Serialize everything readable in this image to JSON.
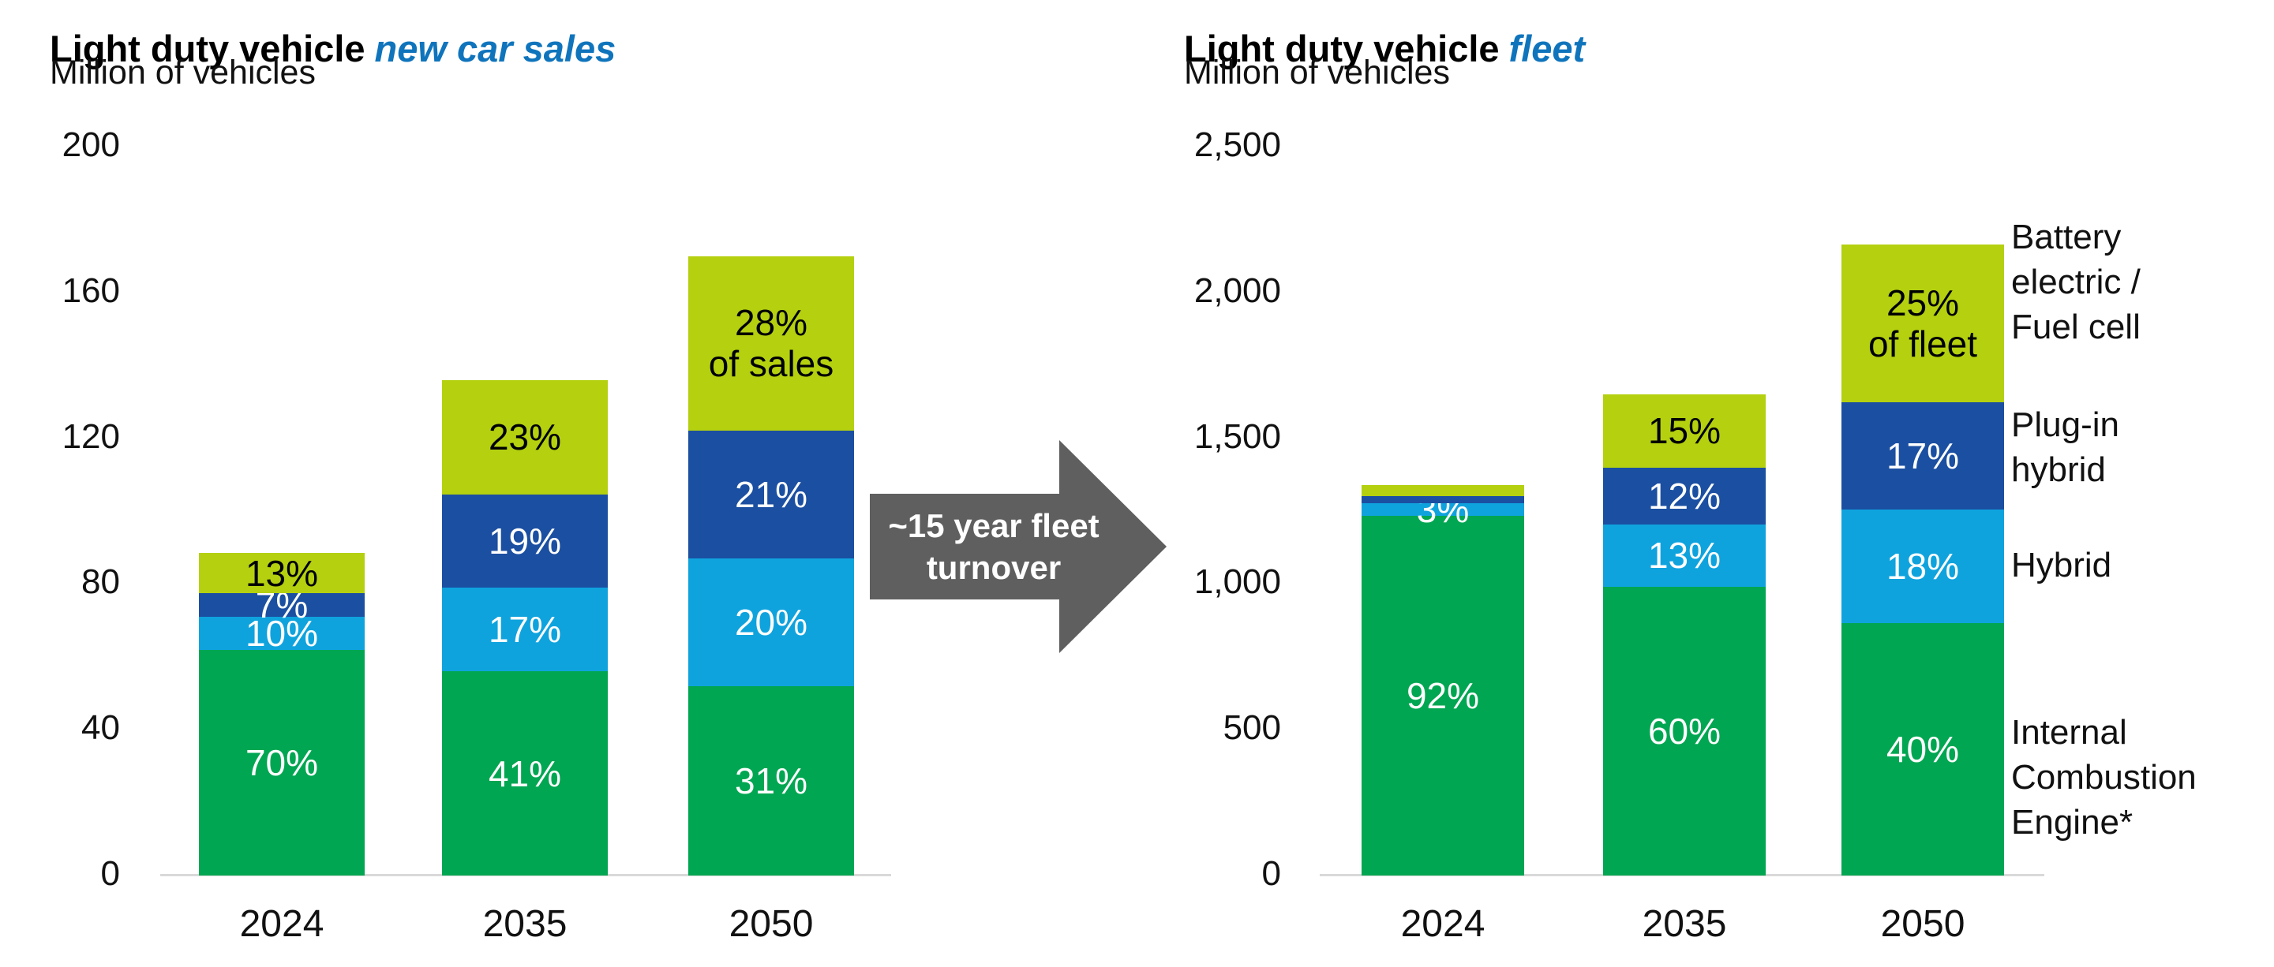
{
  "colors": {
    "ice_green": "#00a651",
    "hybrid_light_blue": "#0fa3de",
    "phev_dark_blue": "#1b4fa1",
    "bev_lime": "#b4d00f",
    "accent_blue": "#0f74bc",
    "arrow_gray": "#5f5f5f",
    "axis_line_gray": "#d9d9d9"
  },
  "arrow": {
    "label": "~15 year fleet\nturnover"
  },
  "legend": {
    "items": [
      {
        "key": "bev",
        "label": "Battery\nelectric /\nFuel cell"
      },
      {
        "key": "phev",
        "label": "Plug-in\nhybrid"
      },
      {
        "key": "hybrid",
        "label": "Hybrid"
      },
      {
        "key": "ice",
        "label": "Internal\nCombustion\nEngine*"
      }
    ]
  },
  "chart_data": [
    {
      "type": "bar",
      "stacked": true,
      "title_main": "Light duty vehicle",
      "title_accent": "new car sales",
      "subtitle": "Million of vehicles",
      "categories": [
        "2024",
        "2035",
        "2050"
      ],
      "ylim": [
        0,
        200
      ],
      "yticks": {
        "values": [
          0,
          40,
          80,
          120,
          160,
          200
        ],
        "labels": [
          "0",
          "40",
          "80",
          "120",
          "160",
          "200"
        ]
      },
      "grid": false,
      "legend_position": "none",
      "totals_estimated": [
        88,
        136,
        170
      ],
      "series": [
        {
          "key": "ice",
          "name": "Internal Combustion Engine*",
          "color": "#00a651",
          "label_color": "#ffffff",
          "values": [
            62,
            56,
            52
          ],
          "labels": [
            "70%",
            "41%",
            "31%"
          ]
        },
        {
          "key": "hybrid",
          "name": "Hybrid",
          "color": "#0fa3de",
          "label_color": "#ffffff",
          "values": [
            9,
            23,
            35
          ],
          "labels": [
            "10%",
            "17%",
            "20%"
          ]
        },
        {
          "key": "phev",
          "name": "Plug-in hybrid",
          "color": "#1b4fa1",
          "label_color": "#ffffff",
          "values": [
            6.5,
            25.5,
            35
          ],
          "labels": [
            "7%",
            "19%",
            "21%"
          ]
        },
        {
          "key": "bev",
          "name": "Battery electric / Fuel cell",
          "color": "#b4d00f",
          "label_color": "#000000",
          "values": [
            11,
            31.5,
            48
          ],
          "labels": [
            "13%",
            "23%",
            "28%\nof sales"
          ]
        }
      ]
    },
    {
      "type": "bar",
      "stacked": true,
      "title_main": "Light duty vehicle",
      "title_accent": "fleet",
      "subtitle": "Million of vehicles",
      "categories": [
        "2024",
        "2035",
        "2050"
      ],
      "ylim": [
        0,
        2500
      ],
      "yticks": {
        "values": [
          0,
          500,
          1000,
          1500,
          2000,
          2500
        ],
        "labels": [
          "0",
          "500",
          "1,000",
          "1,500",
          "2,000",
          "2,500"
        ]
      },
      "grid": false,
      "legend_position": "right",
      "totals_estimated": [
        1340,
        1650,
        2165
      ],
      "series": [
        {
          "key": "ice",
          "name": "Internal Combustion Engine*",
          "color": "#00a651",
          "label_color": "#ffffff",
          "values": [
            1235,
            990,
            866
          ],
          "labels": [
            "92%",
            "60%",
            "40%"
          ]
        },
        {
          "key": "hybrid",
          "name": "Hybrid",
          "color": "#0fa3de",
          "label_color": "#ffffff",
          "values": [
            43,
            215,
            390
          ],
          "labels": [
            "3%",
            "13%",
            "18%"
          ]
        },
        {
          "key": "phev",
          "name": "Plug-in hybrid",
          "color": "#1b4fa1",
          "label_color": "#ffffff",
          "values": [
            24,
            195,
            368
          ],
          "labels": [
            "",
            "12%",
            "17%"
          ]
        },
        {
          "key": "bev",
          "name": "Battery electric / Fuel cell",
          "color": "#b4d00f",
          "label_color": "#000000",
          "values": [
            38,
            250,
            541
          ],
          "labels": [
            "",
            "15%",
            "25%\nof fleet"
          ]
        }
      ]
    }
  ]
}
